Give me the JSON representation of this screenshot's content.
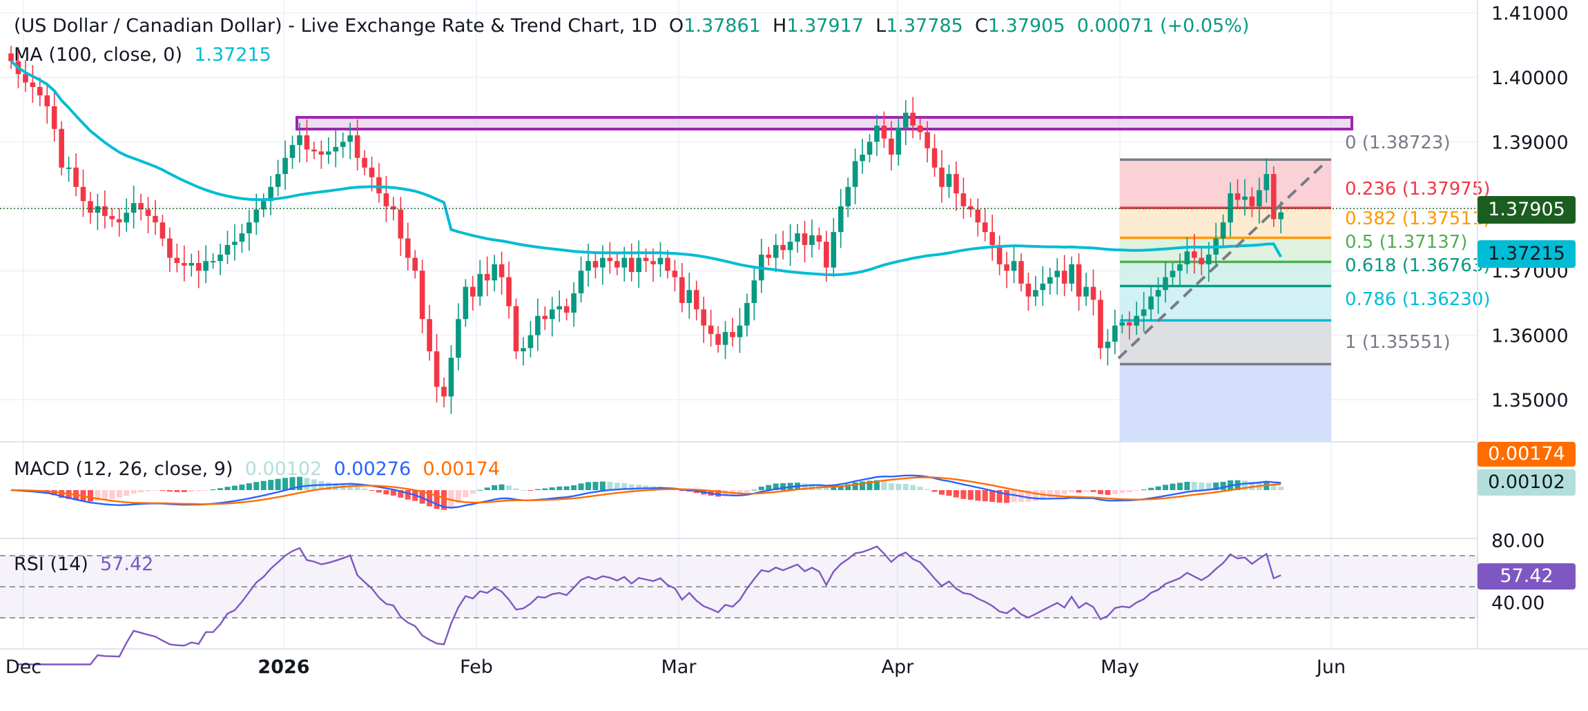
{
  "header": {
    "title": "(US Dollar / Canadian Dollar) - Live Exchange Rate & Trend Chart, 1D",
    "open_label": "O",
    "open": "1.37861",
    "high_label": "H",
    "high": "1.37917",
    "low_label": "L",
    "low": "1.37785",
    "close_label": "C",
    "close": "1.37905",
    "change": "0.00071 (+0.05%)",
    "ma_label": "MA (100, close, 0)",
    "ma_value": "1.37215",
    "macd_label": "MACD (12, 26, close, 9)",
    "macd_hist": "0.00102",
    "macd_line": "0.00276",
    "macd_signal": "0.00174",
    "rsi_label": "RSI (14)",
    "rsi_value": "57.42"
  },
  "badges": {
    "price": "1.37905",
    "ma": "1.37215",
    "macd_signal": "0.00174",
    "macd_hist": "0.00102",
    "rsi": "57.42"
  },
  "colors": {
    "up": "#089981",
    "down": "#f23645",
    "ma": "#00bcd4",
    "macd": "#2962ff",
    "signal": "#ff6d00",
    "rsi": "#7e57c2",
    "resistance": "#9c27b0",
    "grid": "#f0f3fa"
  },
  "chart_data": [
    {
      "type": "candlestick",
      "title": "(US Dollar / Canadian Dollar) - Live Exchange Rate & Trend Chart, 1D",
      "x_tick_labels": [
        "Dec",
        "2026",
        "Feb",
        "Mar",
        "Apr",
        "May",
        "Jun"
      ],
      "y_tick_labels": [
        "1.41000",
        "1.40000",
        "1.39000",
        "1.38000",
        "1.37000",
        "1.36000",
        "1.35000"
      ],
      "ylim": [
        1.3435,
        1.4105
      ],
      "last_close": 1.37905,
      "closes": [
        1.4025,
        1.4005,
        1.3992,
        1.3985,
        1.3972,
        1.3955,
        1.392,
        1.386,
        1.386,
        1.383,
        1.3808,
        1.379,
        1.38,
        1.3785,
        1.378,
        1.3775,
        1.379,
        1.3805,
        1.3795,
        1.3785,
        1.3775,
        1.375,
        1.372,
        1.3712,
        1.3708,
        1.3712,
        1.37,
        1.3715,
        1.3715,
        1.3725,
        1.374,
        1.3745,
        1.3758,
        1.3775,
        1.3795,
        1.3808,
        1.383,
        1.385,
        1.3875,
        1.3895,
        1.391,
        1.3888,
        1.3885,
        1.388,
        1.3885,
        1.3892,
        1.39,
        1.391,
        1.3875,
        1.386,
        1.3845,
        1.382,
        1.38,
        1.3795,
        1.375,
        1.372,
        1.37,
        1.3625,
        1.3575,
        1.352,
        1.3505,
        1.3565,
        1.3625,
        1.3675,
        1.366,
        1.3695,
        1.3685,
        1.371,
        1.369,
        1.3645,
        1.3575,
        1.358,
        1.36,
        1.363,
        1.3625,
        1.364,
        1.3645,
        1.3635,
        1.3665,
        1.37,
        1.3715,
        1.3705,
        1.372,
        1.3715,
        1.3705,
        1.372,
        1.3698,
        1.372,
        1.3715,
        1.371,
        1.372,
        1.37,
        1.369,
        1.365,
        1.367,
        1.364,
        1.3615,
        1.3602,
        1.3585,
        1.3605,
        1.3597,
        1.3615,
        1.365,
        1.3685,
        1.3725,
        1.372,
        1.374,
        1.3732,
        1.3745,
        1.3758,
        1.374,
        1.3755,
        1.3745,
        1.3705,
        1.376,
        1.38,
        1.383,
        1.387,
        1.388,
        1.39,
        1.3925,
        1.3905,
        1.388,
        1.3922,
        1.3945,
        1.3925,
        1.3915,
        1.389,
        1.386,
        1.383,
        1.385,
        1.382,
        1.38,
        1.3795,
        1.3775,
        1.376,
        1.374,
        1.371,
        1.37,
        1.3715,
        1.368,
        1.366,
        1.367,
        1.368,
        1.369,
        1.37,
        1.368,
        1.371,
        1.366,
        1.3675,
        1.3655,
        1.358,
        1.359,
        1.3615,
        1.362,
        1.3615,
        1.363,
        1.364,
        1.366,
        1.367,
        1.369,
        1.37,
        1.371,
        1.373,
        1.372,
        1.371,
        1.3725,
        1.375,
        1.3775,
        1.382,
        1.381,
        1.3815,
        1.38,
        1.3825,
        1.385,
        1.378,
        1.37905
      ],
      "series": [
        {
          "name": "MA (100, close, 0)",
          "last": 1.37215
        }
      ],
      "fibonacci": [
        {
          "label": "0 (1.38723)",
          "level": 0,
          "price": 1.38723
        },
        {
          "label": "0.236 (1.37975)",
          "level": 0.236,
          "price": 1.37975
        },
        {
          "label": "0.382 (1.37511)",
          "level": 0.382,
          "price": 1.37511
        },
        {
          "label": "0.5 (1.37137)",
          "level": 0.5,
          "price": 1.37137
        },
        {
          "label": "0.618 (1.36763)",
          "level": 0.618,
          "price": 1.36763
        },
        {
          "label": "0.786 (1.36230)",
          "level": 0.786,
          "price": 1.3623
        },
        {
          "label": "1 (1.35551)",
          "level": 1,
          "price": 1.35551
        }
      ],
      "resistance_zone": [
        1.392,
        1.3937
      ]
    },
    {
      "type": "line",
      "title": "MACD (12, 26, close, 9)",
      "series": [
        {
          "name": "MACD",
          "last": 0.00276
        },
        {
          "name": "Signal",
          "last": 0.00174
        },
        {
          "name": "Histogram",
          "last": 0.00102
        }
      ]
    },
    {
      "type": "line",
      "title": "RSI (14)",
      "y_tick_labels": [
        "80.00",
        "40.00"
      ],
      "bands": [
        70,
        50,
        30
      ],
      "series": [
        {
          "name": "RSI (14)",
          "last": 57.42
        }
      ]
    }
  ]
}
